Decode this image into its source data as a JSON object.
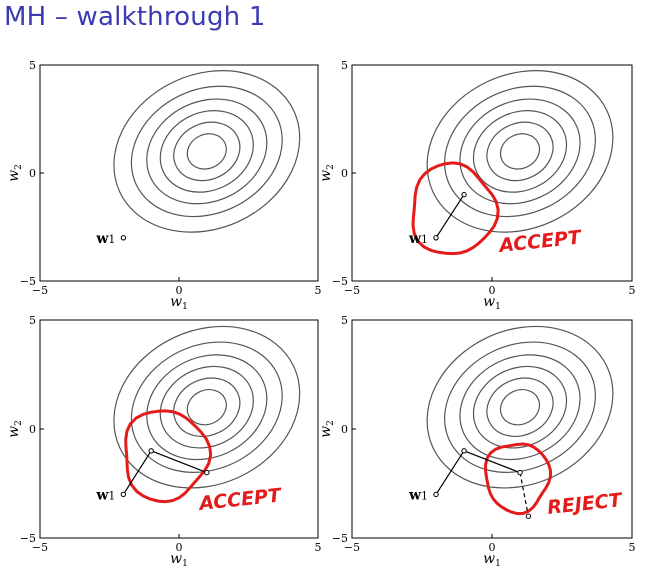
{
  "title": "MH – walkthrough 1",
  "axes": {
    "xlabel": "w",
    "xlabel_sub": "1",
    "ylabel": "w",
    "ylabel_sub": "2",
    "xlim": [
      -5,
      5
    ],
    "ylim": [
      -5,
      5
    ],
    "xticks": [
      "−5",
      "0",
      "5"
    ],
    "yticks": [
      "5",
      "0",
      "−5"
    ]
  },
  "contours": {
    "center": [
      1,
      1
    ],
    "levels": 6,
    "color": "#555555"
  },
  "colors": {
    "annotation": "#e31b1b",
    "title": "#3b3bb3",
    "contour": "#555555"
  },
  "chart_data": [
    {
      "type": "scatter",
      "panel": "top-left",
      "points": [
        {
          "x": -2,
          "y": -3,
          "label": "w",
          "sub": "1"
        }
      ],
      "segments": [],
      "annotation": null
    },
    {
      "type": "scatter",
      "panel": "top-right",
      "points": [
        {
          "x": -2,
          "y": -3,
          "label": "w",
          "sub": "1"
        },
        {
          "x": -1,
          "y": -1
        }
      ],
      "segments": [
        {
          "from": [
            -2,
            -3
          ],
          "to": [
            -1,
            -1
          ],
          "style": "solid"
        }
      ],
      "annotation": {
        "text": "ACCEPT",
        "circle_center": [
          -1.4,
          -1.7
        ]
      }
    },
    {
      "type": "scatter",
      "panel": "bottom-left",
      "points": [
        {
          "x": -2,
          "y": -3,
          "label": "w",
          "sub": "1"
        },
        {
          "x": -1,
          "y": -1
        },
        {
          "x": 1,
          "y": -2
        }
      ],
      "segments": [
        {
          "from": [
            -2,
            -3
          ],
          "to": [
            -1,
            -1
          ],
          "style": "solid"
        },
        {
          "from": [
            -1,
            -1
          ],
          "to": [
            1,
            -2
          ],
          "style": "solid"
        }
      ],
      "annotation": {
        "text": "ACCEPT",
        "circle_center": [
          -0.5,
          -1.2
        ]
      }
    },
    {
      "type": "scatter",
      "panel": "bottom-right",
      "points": [
        {
          "x": -2,
          "y": -3,
          "label": "w",
          "sub": "1"
        },
        {
          "x": -1,
          "y": -1
        },
        {
          "x": 1,
          "y": -2
        },
        {
          "x": 1.3,
          "y": -4
        }
      ],
      "segments": [
        {
          "from": [
            -2,
            -3
          ],
          "to": [
            -1,
            -1
          ],
          "style": "solid"
        },
        {
          "from": [
            -1,
            -1
          ],
          "to": [
            1,
            -2
          ],
          "style": "solid"
        },
        {
          "from": [
            1,
            -2
          ],
          "to": [
            1.3,
            -4
          ],
          "style": "dashed"
        }
      ],
      "annotation": {
        "text": "REJECT",
        "circle_center": [
          0.9,
          -2.2
        ]
      }
    }
  ]
}
